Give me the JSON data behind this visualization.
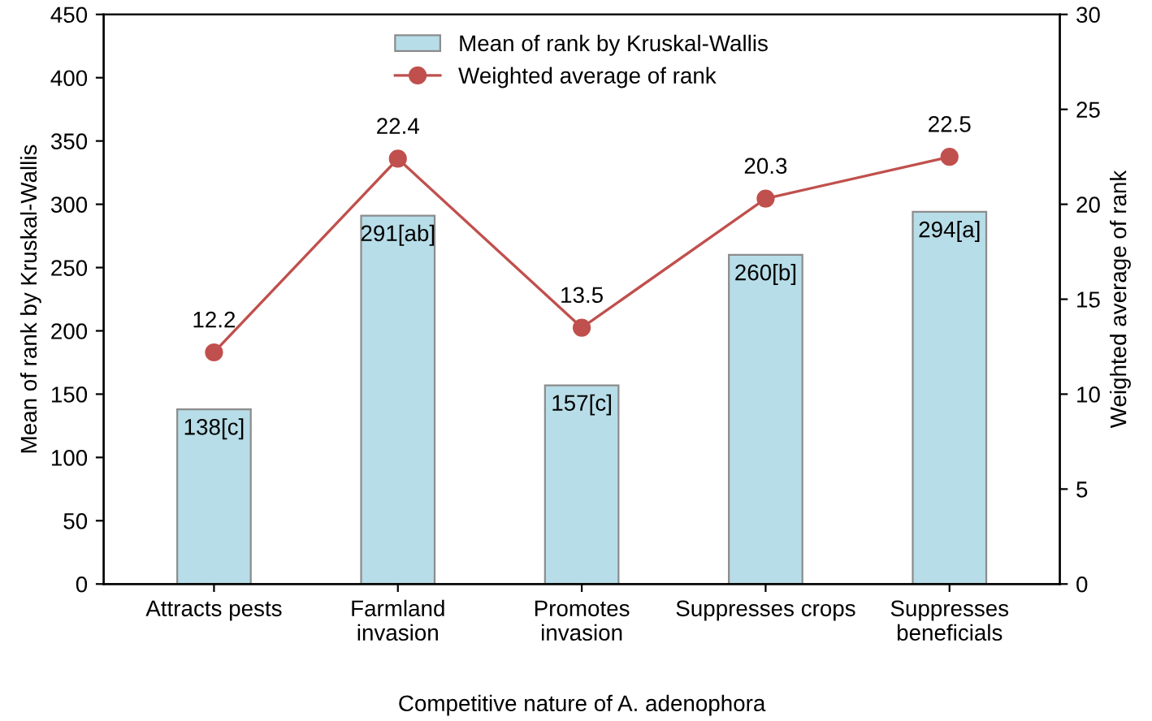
{
  "chart_data": {
    "type": "bar",
    "xlabel": "Competitive nature of A. adenophora",
    "ylabel": "Mean of rank by Kruskal-Wallis",
    "y2label": "Weighted average of rank",
    "categories": [
      "Attracts pests",
      "Farmland\ninvasion",
      "Promotes\ninvasion",
      "Suppresses crops",
      "Suppresses\nbeneficials"
    ],
    "series": [
      {
        "name": "Mean of rank by Kruskal-Wallis",
        "color": "#b7dde8",
        "values": [
          138,
          291,
          157,
          260,
          294
        ],
        "value_labels": [
          "138[c]",
          "291[ab]",
          "157[c]",
          "260[b]",
          "294[a]"
        ]
      },
      {
        "name": "Weighted average of rank",
        "type": "line",
        "axis": "y2",
        "color": "#c0504d",
        "marker": "circle",
        "values": [
          12.2,
          22.4,
          13.5,
          20.3,
          22.5
        ],
        "data_labels": true
      }
    ],
    "ylim": [
      0,
      450
    ],
    "yticks": [
      0,
      50,
      100,
      150,
      200,
      250,
      300,
      350,
      400,
      450
    ],
    "y2lim": [
      0,
      30
    ],
    "y2ticks": [
      0,
      5,
      10,
      15,
      20,
      25,
      30
    ],
    "grid": false,
    "legend": "top"
  }
}
